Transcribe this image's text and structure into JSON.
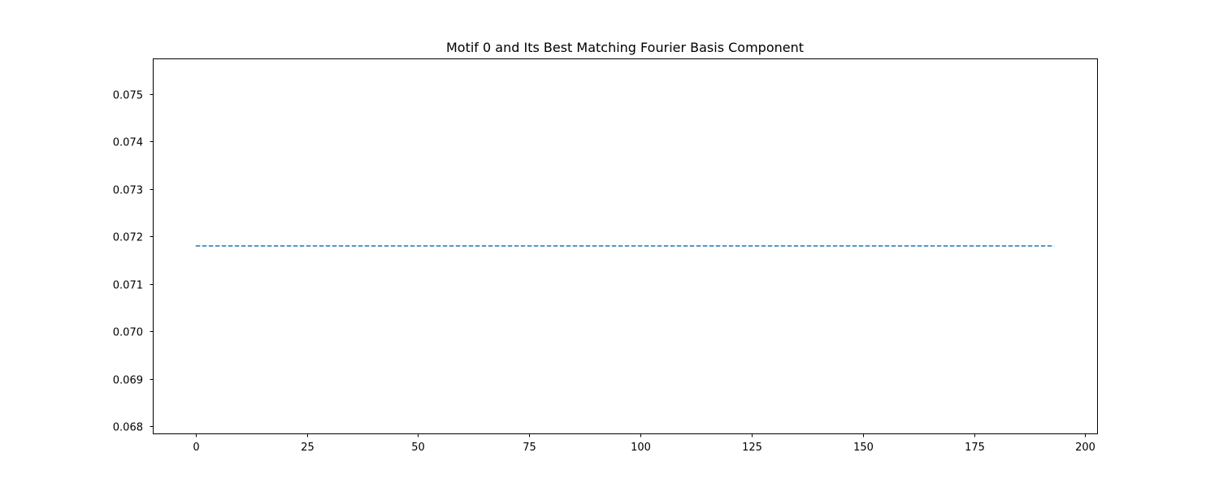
{
  "chart_data": {
    "type": "line",
    "title": "Motif 0 and Its Best Matching Fourier Basis Component",
    "xlabel": "",
    "ylabel": "",
    "xlim": [
      -9.65,
      202.65
    ],
    "ylim": [
      0.06785,
      0.07575
    ],
    "x_ticks": [
      0,
      25,
      50,
      75,
      100,
      125,
      150,
      175,
      200
    ],
    "y_ticks": [
      0.068,
      0.069,
      0.07,
      0.071,
      0.072,
      0.073,
      0.074,
      0.075
    ],
    "x_tick_labels": [
      "0",
      "25",
      "50",
      "75",
      "100",
      "125",
      "150",
      "175",
      "200"
    ],
    "y_tick_labels": [
      "0.068",
      "0.069",
      "0.070",
      "0.071",
      "0.072",
      "0.073",
      "0.074",
      "0.075"
    ],
    "grid": false,
    "legend": "none",
    "series": [
      {
        "line_style": "dashed",
        "color": "#1f77b4",
        "x": [
          0,
          193
        ],
        "y": [
          0.0718,
          0.0718
        ]
      }
    ]
  }
}
